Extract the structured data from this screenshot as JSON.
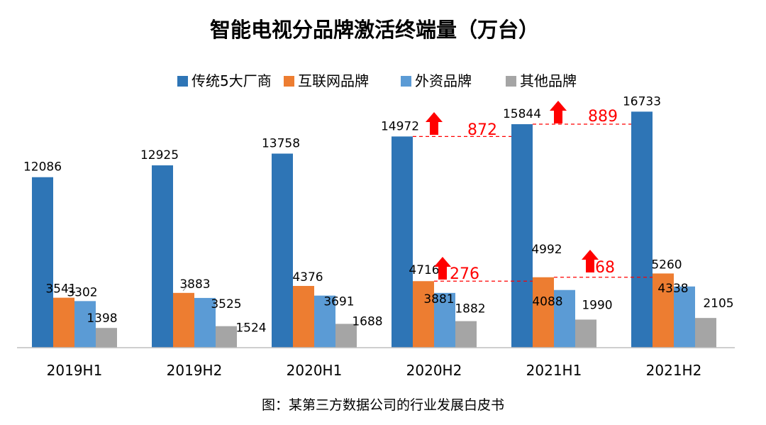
{
  "chart_data": {
    "type": "bar",
    "title": "智能电视分品牌激活终端量（万台）",
    "categories": [
      "2019H1",
      "2019H2",
      "2020H1",
      "2020H2",
      "2021H1",
      "2021H2"
    ],
    "series": [
      {
        "name": "传统5大厂商",
        "color": "#2E75B6",
        "values": [
          12086,
          12925,
          13758,
          14972,
          15844,
          16733
        ]
      },
      {
        "name": "互联网品牌",
        "color": "#ED7D31",
        "values": [
          3541,
          3883,
          4376,
          4716,
          4992,
          5260
        ]
      },
      {
        "name": "外资品牌",
        "color": "#5B9BD5",
        "values": [
          3302,
          3525,
          3691,
          3881,
          4088,
          4338
        ]
      },
      {
        "name": "其他品牌",
        "color": "#A5A5A5",
        "values": [
          1398,
          1524,
          1688,
          1882,
          1990,
          2105
        ]
      }
    ],
    "ylim": [
      0,
      17000
    ],
    "grid": false,
    "legend": "top",
    "annotations": [
      {
        "text": "872",
        "series": "传统5大厂商",
        "from": "2020H2",
        "to": "2021H1"
      },
      {
        "text": "889",
        "series": "传统5大厂商",
        "from": "2021H1",
        "to": "2021H2"
      },
      {
        "text": "276",
        "series": "互联网品牌",
        "from": "2020H2",
        "to": "2021H1"
      },
      {
        "text": "268",
        "series": "互联网品牌",
        "from": "2021H1",
        "to": "2021H2"
      }
    ],
    "annotation_color": "#FF0000"
  },
  "caption": "图：某第三方数据公司的行业发展白皮书"
}
